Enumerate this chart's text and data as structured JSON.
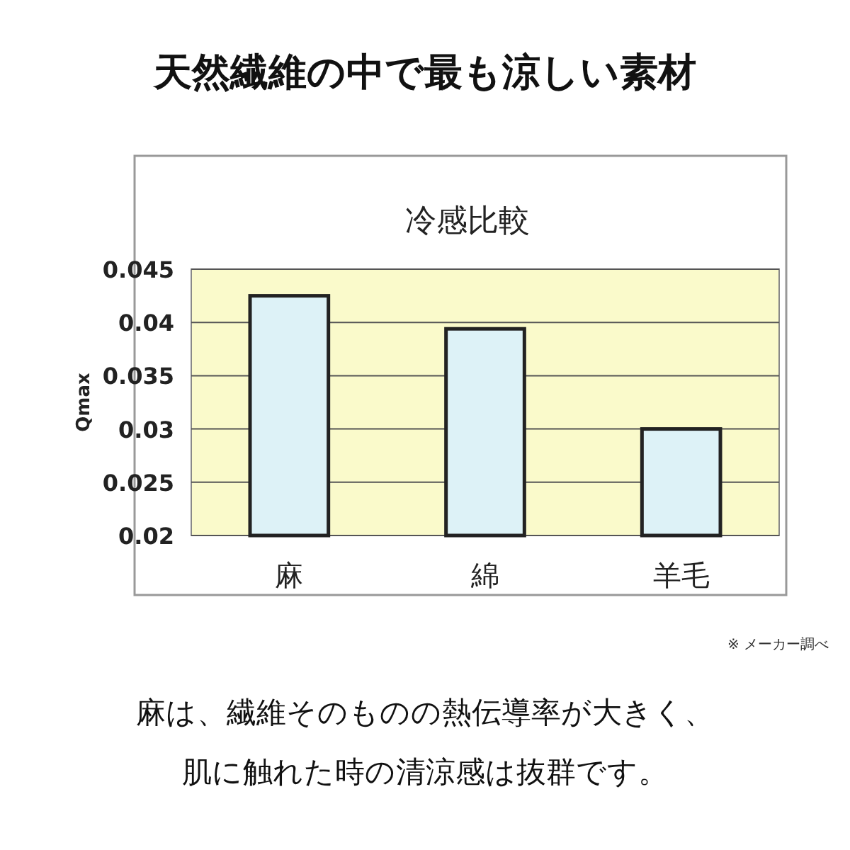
{
  "chart_data": {
    "type": "bar",
    "title": "天然繊維の中で最も涼しい素材",
    "subtitle": "冷感比較",
    "ylabel": "Qmax",
    "categories": [
      "麻",
      "綿",
      "羊毛"
    ],
    "values": [
      0.0425,
      0.0394,
      0.03
    ],
    "color": "#ddf2f7",
    "ylim": [
      0.02,
      0.045
    ],
    "yticks": [
      0.02,
      0.025,
      0.03,
      0.035,
      0.04,
      0.045
    ],
    "grid": "y",
    "annotations": [
      "※ メーカー調べ",
      "麻は、繊維そのものの熱伝導率が大きく、",
      "肌に触れた時の清涼感は抜群です。"
    ]
  }
}
